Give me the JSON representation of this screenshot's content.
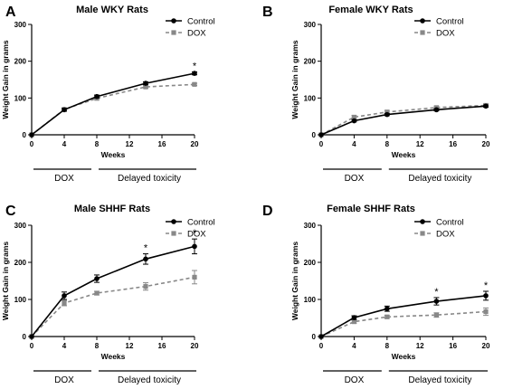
{
  "chart_data": [
    {
      "type": "line",
      "panel_letter": "A",
      "title": "Male WKY Rats",
      "xlabel": "Weeks",
      "ylabel": "Weight Gain in grams",
      "x_ticks": [
        0,
        4,
        8,
        12,
        16,
        20
      ],
      "y_ticks": [
        0,
        100,
        200,
        300
      ],
      "xlim": [
        0,
        20
      ],
      "ylim": [
        0,
        300
      ],
      "x": [
        0,
        4,
        8,
        14,
        20
      ],
      "series": [
        {
          "name": "Control",
          "color": "#000000",
          "dashed": false,
          "marker": "circle",
          "values": [
            0,
            68,
            104,
            140,
            167
          ],
          "errors": [
            0,
            4,
            4,
            4,
            4
          ]
        },
        {
          "name": "DOX",
          "color": "#888888",
          "dashed": true,
          "marker": "square",
          "values": [
            0,
            69,
            99,
            130,
            137
          ],
          "errors": [
            0,
            3,
            3,
            3,
            3
          ]
        }
      ],
      "significant_x": [
        20
      ],
      "significance_symbol": "*",
      "phases": [
        {
          "label": "DOX"
        },
        {
          "label": "Delayed toxicity"
        }
      ],
      "legend_position": "top-right"
    },
    {
      "type": "line",
      "panel_letter": "B",
      "title": "Female WKY Rats",
      "xlabel": "Weeks",
      "ylabel": "Weight Gain in grams",
      "x_ticks": [
        0,
        4,
        8,
        12,
        16,
        20
      ],
      "y_ticks": [
        0,
        100,
        200,
        300
      ],
      "xlim": [
        0,
        20
      ],
      "ylim": [
        0,
        300
      ],
      "x": [
        0,
        4,
        8,
        14,
        20
      ],
      "series": [
        {
          "name": "Control",
          "color": "#000000",
          "dashed": false,
          "marker": "circle",
          "values": [
            0,
            38,
            55,
            68,
            78
          ],
          "errors": [
            0,
            3,
            3,
            3,
            3
          ]
        },
        {
          "name": "DOX",
          "color": "#888888",
          "dashed": true,
          "marker": "square",
          "values": [
            0,
            48,
            62,
            74,
            80
          ],
          "errors": [
            0,
            4,
            4,
            4,
            4
          ]
        }
      ],
      "significant_x": [],
      "significance_symbol": "*",
      "phases": [
        {
          "label": "DOX"
        },
        {
          "label": "Delayed toxicity"
        }
      ],
      "legend_position": "top-right"
    },
    {
      "type": "line",
      "panel_letter": "C",
      "title": "Male SHHF  Rats",
      "xlabel": "Weeks",
      "ylabel": "Weight Gain in grams",
      "x_ticks": [
        0,
        4,
        8,
        12,
        16,
        20
      ],
      "y_ticks": [
        0,
        100,
        200,
        300
      ],
      "xlim": [
        0,
        20
      ],
      "ylim": [
        0,
        300
      ],
      "x": [
        0,
        4,
        8,
        14,
        20
      ],
      "series": [
        {
          "name": "Control",
          "color": "#000000",
          "dashed": false,
          "marker": "circle",
          "values": [
            0,
            110,
            156,
            209,
            243
          ],
          "errors": [
            0,
            10,
            10,
            14,
            20
          ]
        },
        {
          "name": "DOX",
          "color": "#888888",
          "dashed": true,
          "marker": "square",
          "values": [
            0,
            90,
            117,
            135,
            160
          ],
          "errors": [
            0,
            7,
            5,
            10,
            18
          ]
        }
      ],
      "significant_x": [
        14,
        20
      ],
      "significance_symbol": "*",
      "phases": [
        {
          "label": "DOX"
        },
        {
          "label": "Delayed toxicity"
        }
      ],
      "legend_position": "top-right"
    },
    {
      "type": "line",
      "panel_letter": "D",
      "title": "Female SHHF Rats",
      "xlabel": "Weeks",
      "ylabel": "Weight Gain in grams",
      "x_ticks": [
        0,
        4,
        8,
        12,
        16,
        20
      ],
      "y_ticks": [
        0,
        100,
        200,
        300
      ],
      "xlim": [
        0,
        20
      ],
      "ylim": [
        0,
        300
      ],
      "x": [
        0,
        4,
        8,
        14,
        20
      ],
      "series": [
        {
          "name": "Control",
          "color": "#000000",
          "dashed": false,
          "marker": "circle",
          "values": [
            0,
            51,
            75,
            95,
            110
          ],
          "errors": [
            0,
            5,
            7,
            10,
            12
          ]
        },
        {
          "name": "DOX",
          "color": "#888888",
          "dashed": true,
          "marker": "square",
          "values": [
            0,
            40,
            53,
            58,
            67
          ],
          "errors": [
            0,
            4,
            4,
            6,
            10
          ]
        }
      ],
      "significant_x": [
        14,
        20
      ],
      "significance_symbol": "*",
      "phases": [
        {
          "label": "DOX"
        },
        {
          "label": "Delayed toxicity"
        }
      ],
      "legend_position": "top-right"
    }
  ]
}
